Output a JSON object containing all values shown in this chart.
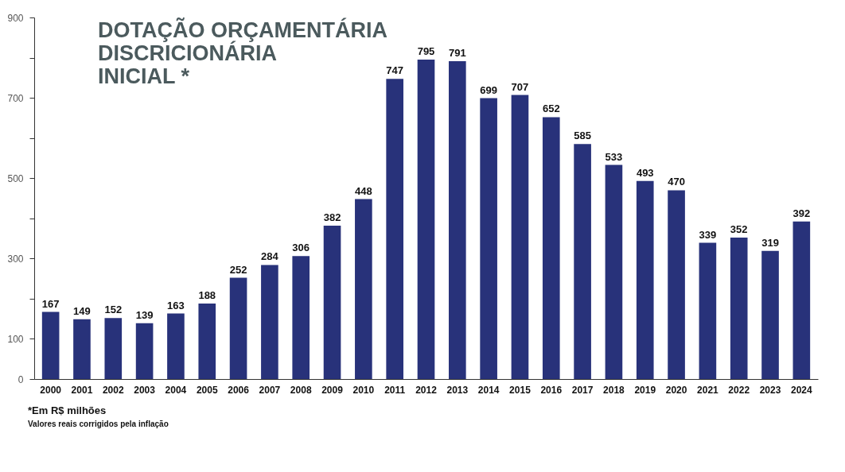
{
  "chart_data": {
    "type": "bar",
    "title": "DOTAÇÃO ORÇAMENTÁRIA DISCRICIONÁRIA INICIAL *",
    "categories": [
      "2000",
      "2001",
      "2002",
      "2003",
      "2004",
      "2005",
      "2006",
      "2007",
      "2008",
      "2009",
      "2010",
      "2011",
      "2012",
      "2013",
      "2014",
      "2015",
      "2016",
      "2017",
      "2018",
      "2019",
      "2020",
      "2021",
      "2022",
      "2023",
      "2024"
    ],
    "values": [
      167,
      149,
      152,
      139,
      163,
      188,
      252,
      284,
      306,
      382,
      448,
      747,
      795,
      791,
      699,
      707,
      652,
      585,
      533,
      493,
      470,
      339,
      352,
      319,
      392
    ],
    "color": "#28327a",
    "ylim": [
      0,
      900
    ],
    "yticks": [
      0,
      100,
      {
        "value": 200,
        "label": null
      },
      300,
      {
        "value": 400,
        "label": null
      },
      500,
      {
        "value": 600,
        "label": null
      },
      700,
      {
        "value": 800,
        "label": null
      },
      900
    ],
    "data_labels": true,
    "grid": false,
    "annotations": [
      "*Em R$ milhões",
      "Valores reais corrigidos pela inflação"
    ]
  }
}
